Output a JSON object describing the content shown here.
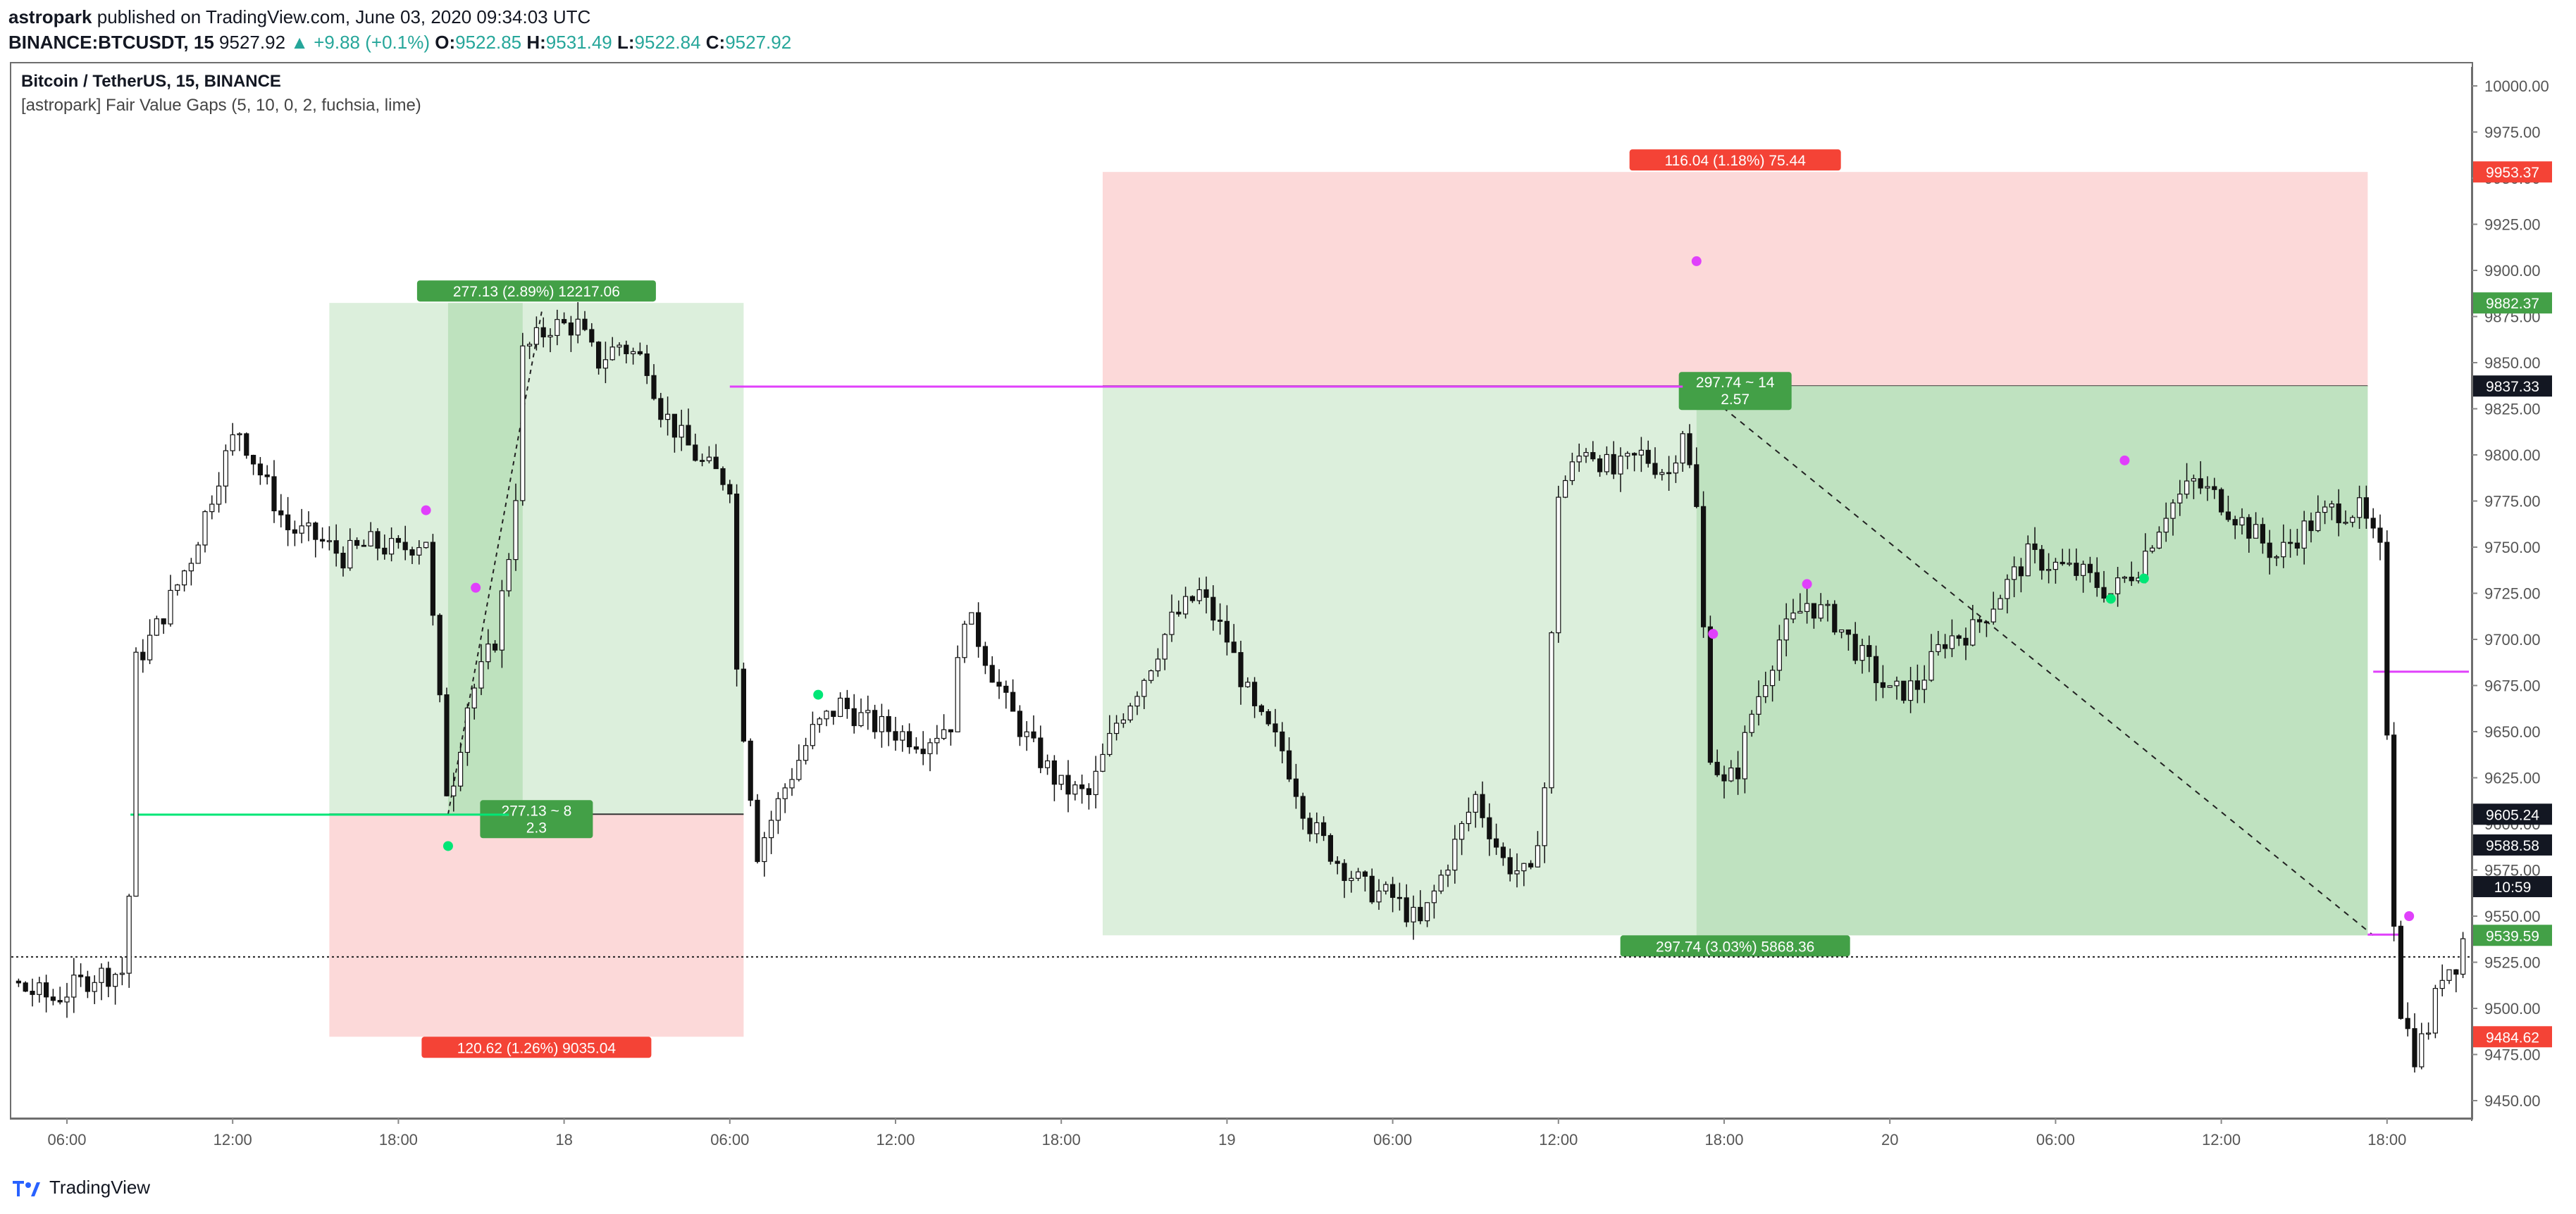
{
  "header": {
    "author": "astropark",
    "published_text": "published on TradingView.com, June 03, 2020 09:34:03 UTC",
    "symbol": "BINANCE:BTCUSDT, 15",
    "last": "9527.92",
    "change": "▲ +9.88 (+0.1%)",
    "o_label": "O:",
    "o": "9522.85",
    "h_label": "H:",
    "h": "9531.49",
    "l_label": "L:",
    "l": "9522.84",
    "c_label": "C:",
    "c": "9527.92"
  },
  "chart": {
    "title": "Bitcoin / TetherUS, 15, BINANCE",
    "indicator": "[astropark] Fair Value Gaps (5, 10, 0, 2, fuchsia, lime)"
  },
  "footer": {
    "brand": "TradingView"
  },
  "colors": {
    "up": "#26a69a",
    "down": "#000000",
    "fuchsia": "#e040fb",
    "lime": "#00e676",
    "target_fill": "#c8e6c9",
    "stop_fill": "#f8cdcd",
    "label_green": "#43a047",
    "label_red": "#f44336"
  },
  "chart_data": {
    "type": "candlestick",
    "y_ticks": [
      "10000.00",
      "9975.00",
      "9950.00",
      "9925.00",
      "9900.00",
      "9875.00",
      "9850.00",
      "9825.00",
      "9800.00",
      "9775.00",
      "9750.00",
      "9725.00",
      "9700.00",
      "9675.00",
      "9650.00",
      "9625.00",
      "9600.00",
      "9575.00",
      "9550.00",
      "9525.00",
      "9500.00",
      "9475.00",
      "9450.00"
    ],
    "ylim": [
      9440,
      10010
    ],
    "x_ticks": [
      "06:00",
      "12:00",
      "18:00",
      "18",
      "06:00",
      "12:00",
      "18:00",
      "19",
      "06:00",
      "12:00",
      "18:00",
      "20",
      "06:00",
      "12:00",
      "18:00"
    ],
    "x_tick_hours": [
      6,
      12,
      18,
      24,
      30,
      36,
      42,
      48,
      54,
      60,
      66,
      72,
      78,
      84,
      90
    ],
    "xlim_hours": [
      0,
      93
    ],
    "close_path": [
      [
        0,
        9545
      ],
      [
        1.5,
        9532
      ],
      [
        3,
        9520
      ],
      [
        4.5,
        9510
      ],
      [
        5.5,
        9505
      ],
      [
        7,
        9518
      ],
      [
        8.2,
        9520
      ],
      [
        8.4,
        9685
      ],
      [
        9.2,
        9705
      ],
      [
        10.5,
        9745
      ],
      [
        11.5,
        9790
      ],
      [
        12.2,
        9815
      ],
      [
        13,
        9790
      ],
      [
        14,
        9760
      ],
      [
        15,
        9755
      ],
      [
        16,
        9745
      ],
      [
        17,
        9752
      ],
      [
        18,
        9748
      ],
      [
        19,
        9755
      ],
      [
        19.8,
        9610
      ],
      [
        20.5,
        9665
      ],
      [
        21.5,
        9700
      ],
      [
        22.2,
        9765
      ],
      [
        22.5,
        9855
      ],
      [
        23.5,
        9870
      ],
      [
        24.5,
        9870
      ],
      [
        25.2,
        9850
      ],
      [
        26,
        9860
      ],
      [
        27,
        9850
      ],
      [
        27.5,
        9825
      ],
      [
        28.2,
        9810
      ],
      [
        29,
        9795
      ],
      [
        30,
        9785
      ],
      [
        30.2,
        9690
      ],
      [
        31,
        9585
      ],
      [
        32,
        9620
      ],
      [
        33,
        9650
      ],
      [
        34,
        9665
      ],
      [
        35,
        9655
      ],
      [
        36,
        9650
      ],
      [
        37,
        9645
      ],
      [
        38,
        9655
      ],
      [
        38.5,
        9715
      ],
      [
        39,
        9700
      ],
      [
        40,
        9665
      ],
      [
        41,
        9640
      ],
      [
        42,
        9620
      ],
      [
        43,
        9615
      ],
      [
        44,
        9655
      ],
      [
        45,
        9680
      ],
      [
        46,
        9710
      ],
      [
        47,
        9725
      ],
      [
        48,
        9700
      ],
      [
        49,
        9660
      ],
      [
        50,
        9640
      ],
      [
        51,
        9600
      ],
      [
        52,
        9580
      ],
      [
        53,
        9565
      ],
      [
        54,
        9560
      ],
      [
        55,
        9545
      ],
      [
        56,
        9580
      ],
      [
        57,
        9615
      ],
      [
        58,
        9580
      ],
      [
        59,
        9570
      ],
      [
        59.5,
        9620
      ],
      [
        60,
        9780
      ],
      [
        61,
        9805
      ],
      [
        62,
        9790
      ],
      [
        63,
        9800
      ],
      [
        64,
        9790
      ],
      [
        64.5,
        9815
      ],
      [
        65,
        9770
      ],
      [
        65.5,
        9640
      ],
      [
        66,
        9620
      ],
      [
        66.5,
        9630
      ],
      [
        67,
        9660
      ],
      [
        68,
        9700
      ],
      [
        69,
        9720
      ],
      [
        70,
        9710
      ],
      [
        71,
        9690
      ],
      [
        72,
        9670
      ],
      [
        73,
        9675
      ],
      [
        74,
        9700
      ],
      [
        75,
        9705
      ],
      [
        76,
        9725
      ],
      [
        77,
        9745
      ],
      [
        78,
        9740
      ],
      [
        79,
        9735
      ],
      [
        80,
        9725
      ],
      [
        81,
        9740
      ],
      [
        81.5,
        9755
      ],
      [
        82,
        9770
      ],
      [
        83,
        9785
      ],
      [
        84,
        9775
      ],
      [
        85,
        9760
      ],
      [
        86,
        9745
      ],
      [
        87,
        9760
      ],
      [
        88,
        9770
      ],
      [
        89,
        9770
      ],
      [
        89.8,
        9745
      ],
      [
        90.2,
        9560
      ],
      [
        90.5,
        9500
      ],
      [
        91,
        9475
      ],
      [
        91.5,
        9490
      ],
      [
        92,
        9520
      ],
      [
        92.5,
        9525
      ],
      [
        93,
        9550
      ]
    ],
    "levels": {
      "entry_1": "9605.24",
      "entry_2": "9837.33",
      "current": "9588.58",
      "countdown": "10:59",
      "fuchsia_level": "9682.50",
      "lime_level": "9605.00",
      "long_target": "9882.37",
      "long_stop": "9484.62",
      "short_stop": "9953.37",
      "short_target": "9539.59",
      "dotted_level": "9527.92"
    },
    "position_1": {
      "type": "long",
      "start_hour": 15.5,
      "end_hour": 30.5,
      "entry": 9605.24,
      "target": 9882.37,
      "stop": 9484.62,
      "label_target": "277.13 (2.89%) 12217.06",
      "label_stop": "120.62 (1.26%) 9035.04",
      "label_mid_1": "277.13 ~ 8",
      "label_mid_2": "2.3"
    },
    "position_2": {
      "type": "long",
      "start_hour": 43.5,
      "end_hour": 89.3,
      "entry": 9837.33,
      "target": 9539.59,
      "stop": 9953.37,
      "label_target": "297.74 (3.03%) 5868.36",
      "label_stop": "116.04 (1.18%) 75.44",
      "label_mid_1": "297.74 ~ 14",
      "label_mid_2": "2.57"
    }
  }
}
